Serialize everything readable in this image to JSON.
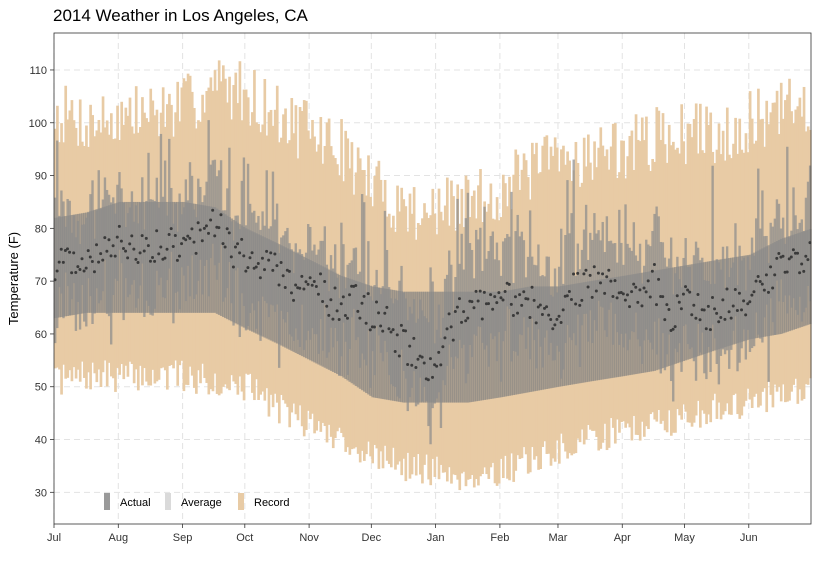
{
  "chart_data": {
    "type": "bar",
    "title": "2014 Weather in Los Angeles, CA",
    "xlabel": "",
    "ylabel": "Temperature (F)",
    "ylim": [
      24,
      117
    ],
    "xlim_days": [
      0,
      365
    ],
    "y_ticks": [
      30,
      40,
      50,
      60,
      70,
      80,
      90,
      100,
      110
    ],
    "month_ticks": [
      {
        "label": "Jul",
        "day": 0
      },
      {
        "label": "Aug",
        "day": 31
      },
      {
        "label": "Sep",
        "day": 62
      },
      {
        "label": "Oct",
        "day": 92
      },
      {
        "label": "Nov",
        "day": 123
      },
      {
        "label": "Dec",
        "day": 153
      },
      {
        "label": "Jan",
        "day": 184
      },
      {
        "label": "Feb",
        "day": 215
      },
      {
        "label": "Mar",
        "day": 243
      },
      {
        "label": "Apr",
        "day": 274
      },
      {
        "label": "May",
        "day": 304
      },
      {
        "label": "Jun",
        "day": 335
      }
    ],
    "grid": true,
    "legend": [
      {
        "label": "Actual",
        "color": "#9a9a9a"
      },
      {
        "label": "Average",
        "color": "#dadada"
      },
      {
        "label": "Record",
        "color": "#e8cba5"
      }
    ],
    "legend_position": "bottom-left",
    "colors": {
      "record": "#e8cba5",
      "average": "#808080",
      "actual": "#8c8c8c",
      "point": "#3a3a3a",
      "grid": "#e3e3e3"
    },
    "series": [
      {
        "name": "Record high (anchors)",
        "days": [
          0,
          15,
          31,
          46,
          62,
          77,
          92,
          108,
          123,
          138,
          153,
          168,
          184,
          199,
          215,
          229,
          243,
          258,
          274,
          289,
          304,
          319,
          335,
          350,
          365
        ],
        "values": [
          102,
          100,
          101,
          102,
          103,
          107,
          106,
          101,
          98,
          95,
          88,
          84,
          83,
          85,
          87,
          91,
          93,
          94,
          95,
          97,
          98,
          98,
          100,
          102,
          104
        ]
      },
      {
        "name": "Record low (anchors)",
        "days": [
          0,
          15,
          31,
          46,
          62,
          77,
          92,
          108,
          123,
          138,
          153,
          168,
          184,
          199,
          215,
          229,
          243,
          258,
          274,
          289,
          304,
          319,
          335,
          350,
          365
        ],
        "values": [
          51,
          52,
          52,
          52,
          52,
          51,
          50,
          46,
          43,
          40,
          37,
          35,
          34,
          33,
          34,
          36,
          38,
          40,
          42,
          43,
          44,
          46,
          47,
          49,
          50
        ]
      },
      {
        "name": "Average high (anchors)",
        "days": [
          0,
          15,
          31,
          46,
          62,
          77,
          92,
          108,
          123,
          138,
          153,
          168,
          184,
          199,
          215,
          229,
          243,
          258,
          274,
          289,
          304,
          319,
          335,
          350,
          365
        ],
        "values": [
          82,
          83,
          85,
          85,
          85,
          84,
          80,
          77,
          74,
          71,
          69,
          68,
          68,
          68,
          68,
          69,
          69,
          70,
          71,
          72,
          73,
          74,
          75,
          78,
          80
        ]
      },
      {
        "name": "Average low (anchors)",
        "days": [
          0,
          15,
          31,
          46,
          62,
          77,
          92,
          108,
          123,
          138,
          153,
          168,
          184,
          199,
          215,
          229,
          243,
          258,
          274,
          289,
          304,
          319,
          335,
          350,
          365
        ],
        "values": [
          63,
          64,
          64,
          64,
          64,
          64,
          61,
          58,
          55,
          52,
          48,
          47,
          47,
          47,
          48,
          49,
          50,
          51,
          52,
          53,
          55,
          57,
          59,
          60,
          62
        ]
      },
      {
        "name": "Actual mean (anchors)",
        "days": [
          0,
          10,
          20,
          31,
          40,
          50,
          62,
          70,
          77,
          85,
          92,
          100,
          108,
          115,
          123,
          130,
          138,
          145,
          153,
          160,
          168,
          175,
          180,
          184,
          190,
          199,
          207,
          215,
          222,
          229,
          236,
          243,
          250,
          258,
          266,
          274,
          282,
          289,
          296,
          304,
          310,
          319,
          327,
          335,
          343,
          350,
          358,
          365
        ],
        "values": [
          72,
          75,
          74,
          77,
          75,
          77,
          77,
          79,
          81,
          76,
          74,
          73,
          72,
          69,
          71,
          67,
          65,
          66,
          64,
          62,
          58,
          56,
          52,
          55,
          61,
          65,
          66,
          66,
          67,
          66,
          63,
          64,
          68,
          69,
          71,
          68,
          66,
          70,
          63,
          68,
          64,
          64,
          66,
          67,
          71,
          72,
          74,
          76
        ]
      }
    ]
  }
}
